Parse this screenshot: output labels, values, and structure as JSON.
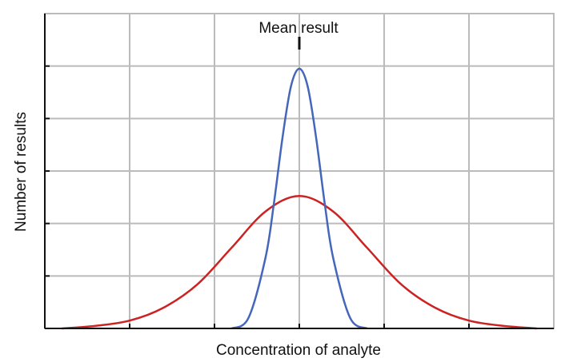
{
  "chart_data": {
    "type": "line",
    "title": "",
    "xlabel": "Concentration of analyte",
    "ylabel": "Number of results",
    "annotation": "Mean result",
    "grid": true,
    "legend": "none",
    "xlim": [
      -3,
      3
    ],
    "ylim": [
      0,
      1
    ],
    "series": [
      {
        "color": "#cc2222",
        "x": [
          -2.8,
          -2.4,
          -2.0,
          -1.6,
          -1.2,
          -0.8,
          -0.4,
          0.0,
          0.4,
          0.8,
          1.2,
          1.6,
          2.0,
          2.4,
          2.8
        ],
        "values": [
          0.0,
          0.01,
          0.03,
          0.08,
          0.17,
          0.31,
          0.45,
          0.51,
          0.45,
          0.31,
          0.17,
          0.08,
          0.03,
          0.01,
          0.0
        ]
      },
      {
        "color": "#4466bb",
        "x": [
          -0.8,
          -0.6,
          -0.4,
          -0.3,
          -0.2,
          -0.1,
          0.0,
          0.1,
          0.2,
          0.3,
          0.4,
          0.6,
          0.8
        ],
        "values": [
          0.0,
          0.04,
          0.27,
          0.48,
          0.73,
          0.93,
          1.0,
          0.93,
          0.73,
          0.48,
          0.27,
          0.04,
          0.0
        ]
      }
    ]
  }
}
